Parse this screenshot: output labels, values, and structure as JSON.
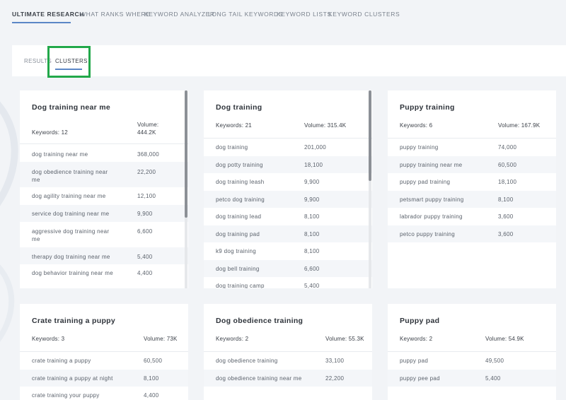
{
  "topnav": {
    "tabs": [
      "ULTIMATE RESEARCH",
      "WHAT RANKS WHERE",
      "KEYWORD ANALYZER",
      "LONG TAIL KEYWORDS",
      "KEYWORD LISTS",
      "KEYWORD CLUSTERS"
    ]
  },
  "subnav": {
    "tabs": [
      "RESULTS",
      "CLUSTERS"
    ]
  },
  "cards": [
    {
      "title": "Dog training near me",
      "keywords": "Keywords: 12",
      "volume_l1": "Volume:",
      "volume_l2": "444.2K",
      "rows": [
        {
          "kw": "dog training near me",
          "vol": "368,000"
        },
        {
          "kw": "dog obedience training near",
          "kw2": "me",
          "vol": "22,200"
        },
        {
          "kw": "dog agility training near me",
          "vol": "12,100"
        },
        {
          "kw": "service dog training near me",
          "vol": "9,900"
        },
        {
          "kw": "aggressive dog training near",
          "kw2": "me",
          "vol": "6,600"
        },
        {
          "kw": "therapy dog training near me",
          "vol": "5,400"
        },
        {
          "kw": "dog behavior training near me",
          "vol": "4,400"
        }
      ]
    },
    {
      "title": "Dog training",
      "keywords": "Keywords: 21",
      "volume": "Volume: 315.4K",
      "rows": [
        {
          "kw": "dog training",
          "vol": "201,000"
        },
        {
          "kw": "dog potty training",
          "vol": "18,100"
        },
        {
          "kw": "dog training leash",
          "vol": "9,900"
        },
        {
          "kw": "petco dog training",
          "vol": "9,900"
        },
        {
          "kw": "dog training lead",
          "vol": "8,100"
        },
        {
          "kw": "dog training pad",
          "vol": "8,100"
        },
        {
          "kw": "k9 dog training",
          "vol": "8,100"
        },
        {
          "kw": "dog bell training",
          "vol": "6,600"
        },
        {
          "kw": "dog training camp",
          "vol": "5,400"
        }
      ]
    },
    {
      "title": "Puppy training",
      "keywords": "Keywords: 6",
      "volume": "Volume: 167.9K",
      "rows": [
        {
          "kw": "puppy training",
          "vol": "74,000"
        },
        {
          "kw": "puppy training near me",
          "vol": "60,500"
        },
        {
          "kw": "puppy pad training",
          "vol": "18,100"
        },
        {
          "kw": "petsmart puppy training",
          "vol": "8,100"
        },
        {
          "kw": "labrador puppy training",
          "vol": "3,600"
        },
        {
          "kw": "petco puppy training",
          "vol": "3,600"
        }
      ]
    },
    {
      "title": "Crate training a puppy",
      "keywords": "Keywords: 3",
      "volume": "Volume: 73K",
      "rows": [
        {
          "kw": "crate training a puppy",
          "vol": "60,500"
        },
        {
          "kw": "crate training a puppy at night",
          "vol": "8,100"
        },
        {
          "kw": "crate training your puppy",
          "vol": "4,400"
        }
      ]
    },
    {
      "title": "Dog obedience training",
      "keywords": "Keywords: 2",
      "volume": "Volume: 55.3K",
      "rows": [
        {
          "kw": "dog obedience training",
          "vol": "33,100"
        },
        {
          "kw": "dog obedience training near me",
          "vol": "22,200"
        }
      ]
    },
    {
      "title": "Puppy pad",
      "keywords": "Keywords: 2",
      "volume": "Volume: 54.9K",
      "rows": [
        {
          "kw": "puppy pad",
          "vol": "49,500"
        },
        {
          "kw": "puppy pee pad",
          "vol": "5,400"
        }
      ]
    }
  ]
}
